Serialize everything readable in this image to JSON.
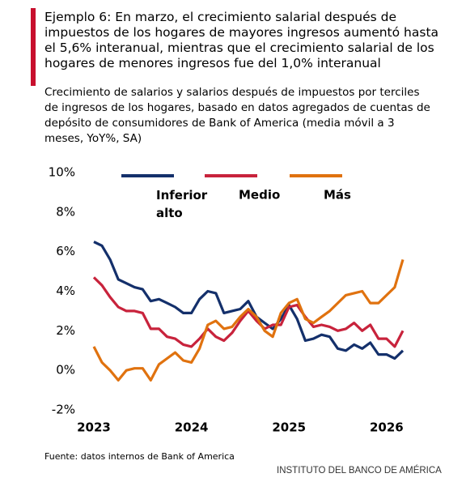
{
  "chart_data": {
    "type": "line",
    "title": "Ejemplo 6: En marzo, el crecimiento salarial después de impuestos de los hogares de mayores ingresos aumentó hasta el 5,6% interanual, mientras que el crecimiento salarial de los hogares de menores ingresos fue del 1,0% interanual",
    "subtitle": "Crecimiento de salarios y salarios después de impuestos por terciles de ingresos de los hogares, basado en datos agregados de cuentas de depósito de consumidores de Bank of America (media móvil a 3 meses, YoY%, SA)",
    "source": "Fuente: datos internos de Bank of America",
    "footer": "INSTITUTO DEL BANCO DE AMÉRICA",
    "x": [
      2023,
      2023.083,
      2023.167,
      2023.25,
      2023.333,
      2023.417,
      2023.5,
      2023.583,
      2023.667,
      2023.75,
      2023.833,
      2023.917,
      2024,
      2024.083,
      2024.167,
      2024.25,
      2024.333,
      2024.417,
      2024.5,
      2024.583,
      2024.667,
      2024.75,
      2024.833,
      2024.917,
      2025,
      2025.083,
      2025.167,
      2025.25,
      2025.333,
      2025.417,
      2025.5,
      2025.583,
      2025.667,
      2025.75,
      2025.833,
      2025.917,
      2026,
      2026.083,
      2026.167
    ],
    "series": [
      {
        "name": "Inferior alto",
        "color": "#14306b",
        "values": [
          6.5,
          6.3,
          5.6,
          4.6,
          4.4,
          4.2,
          4.1,
          3.5,
          3.6,
          3.4,
          3.2,
          2.9,
          2.9,
          3.6,
          4.0,
          3.9,
          2.9,
          3.0,
          3.1,
          3.5,
          2.7,
          2.4,
          2.1,
          2.6,
          3.3,
          2.6,
          1.5,
          1.6,
          1.8,
          1.7,
          1.1,
          1.0,
          1.3,
          1.1,
          1.4,
          0.8,
          0.8,
          0.6,
          1.0
        ]
      },
      {
        "name": "Medio",
        "color": "#c8233c",
        "values": [
          4.7,
          4.3,
          3.7,
          3.2,
          3.0,
          3.0,
          2.9,
          2.1,
          2.1,
          1.7,
          1.6,
          1.3,
          1.2,
          1.6,
          2.1,
          1.7,
          1.5,
          1.9,
          2.5,
          3.0,
          2.5,
          2.1,
          2.3,
          2.3,
          3.2,
          3.3,
          2.7,
          2.2,
          2.3,
          2.2,
          2.0,
          2.1,
          2.4,
          2.0,
          2.3,
          1.6,
          1.6,
          1.2,
          2.0
        ]
      },
      {
        "name": "Más",
        "color": "#e0720f",
        "values": [
          1.2,
          0.4,
          0.0,
          -0.5,
          0.0,
          0.1,
          0.1,
          -0.5,
          0.3,
          0.6,
          0.9,
          0.5,
          0.4,
          1.1,
          2.3,
          2.5,
          2.1,
          2.2,
          2.7,
          3.1,
          2.7,
          2.0,
          1.7,
          2.9,
          3.4,
          3.6,
          2.6,
          2.4,
          2.7,
          3.0,
          3.4,
          3.8,
          3.9,
          4.0,
          3.4,
          3.4,
          3.8,
          4.2,
          5.6
        ]
      }
    ],
    "xlim": [
      2023,
      2026.25
    ],
    "xticks": [
      2023,
      2024,
      2025,
      2026
    ],
    "ylim": [
      -2,
      10
    ],
    "yticks": [
      {
        "value": -2,
        "label": "-2%"
      },
      {
        "value": 0,
        "label": "0%"
      },
      {
        "value": 2,
        "label": "2%"
      },
      {
        "value": 4,
        "label": "4%"
      },
      {
        "value": 6,
        "label": "6%"
      },
      {
        "value": 8,
        "label": "8%"
      },
      {
        "value": 10,
        "label": "10%"
      }
    ],
    "grid": false,
    "legend": "top"
  }
}
